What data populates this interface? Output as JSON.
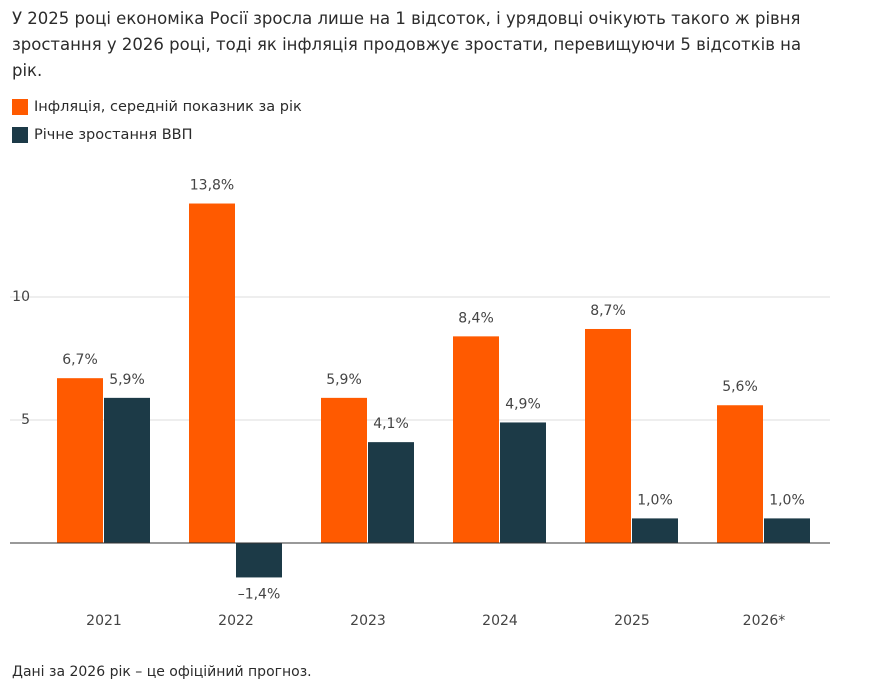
{
  "chart_data": {
    "type": "bar",
    "title": "У 2025 році економіка Росії зросла лише на 1 відсоток, і урядовці очікують такого ж рівня зростання у 2026 році, тоді як інфляція продовжує зростати, перевищуючи 5 відсотків на рік.",
    "categories": [
      "2021",
      "2022",
      "2023",
      "2024",
      "2025",
      "2026*"
    ],
    "series": [
      {
        "name": "Інфляція, середній показник за рік",
        "color": "#ff5a00",
        "values": [
          6.7,
          13.8,
          5.9,
          8.4,
          8.7,
          5.6
        ],
        "value_labels": [
          "6,7%",
          "13,8%",
          "5,9%",
          "8,4%",
          "8,7%",
          "5,6%"
        ]
      },
      {
        "name": "Річне зростання ВВП",
        "color": "#1c3a47",
        "values": [
          5.9,
          -1.4,
          4.1,
          4.9,
          1.0,
          1.0
        ],
        "value_labels": [
          "5,9%",
          "–1,4%",
          "4,1%",
          "4,9%",
          "1,0%",
          "1,0%"
        ]
      }
    ],
    "ylim": [
      -2.5,
      15
    ],
    "yticks": [
      5,
      10
    ],
    "grid": true,
    "note": "Дані за 2026 рік – це офіційний прогноз."
  }
}
